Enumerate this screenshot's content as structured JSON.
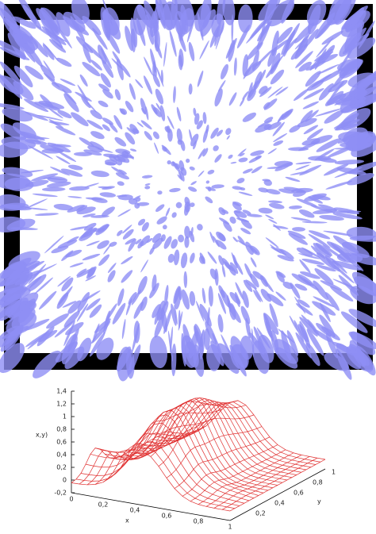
{
  "plot": {
    "z_label": "x,y)",
    "x_label": "x",
    "y_label": "y",
    "z_ticks": [
      "1,4",
      "1,2",
      "1",
      "0,8",
      "0,6",
      "0,4",
      "0,2",
      "0",
      "-0,2"
    ],
    "x_ticks": [
      "0",
      "0,2",
      "0,4",
      "0,6",
      "0,8",
      "1"
    ],
    "y_ticks": [
      "0,2",
      "0,4",
      "0,6",
      "0,8",
      "1"
    ]
  }
}
